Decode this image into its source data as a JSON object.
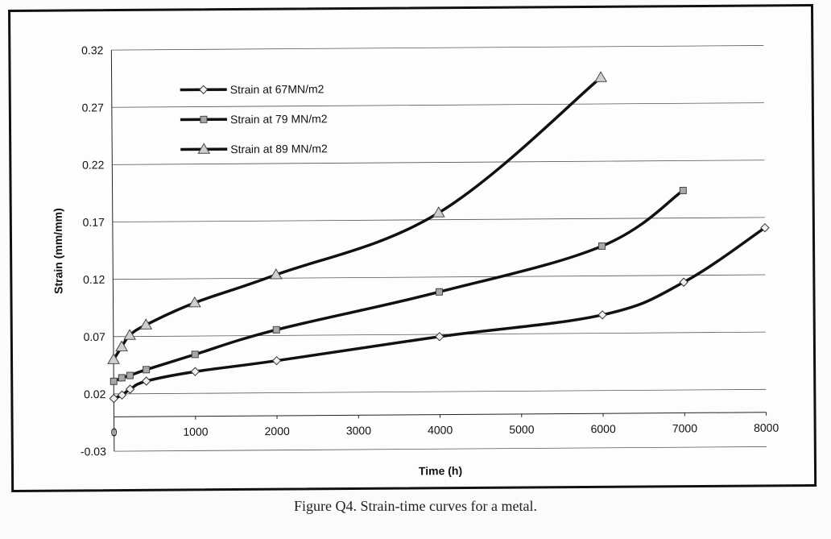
{
  "chart_data": {
    "type": "line",
    "title": "",
    "xlabel": "Time (h)",
    "ylabel": "Strain (mm/mm)",
    "xlim": [
      0,
      8000
    ],
    "ylim": [
      -0.03,
      0.32
    ],
    "x_ticks": [
      "0",
      "1000",
      "2000",
      "3000",
      "4000",
      "5000",
      "6000",
      "7000",
      "8000"
    ],
    "y_ticks": [
      "-0.03",
      "0.02",
      "0.07",
      "0.12",
      "0.17",
      "0.22",
      "0.27",
      "0.32"
    ],
    "grid": true,
    "legend_position": "top-left",
    "series": [
      {
        "name": "Strain at 67MN/m2",
        "marker": "diamond",
        "color": "#111111",
        "x": [
          0,
          100,
          200,
          400,
          1000,
          2000,
          4000,
          6000,
          7000,
          8000
        ],
        "y": [
          0.016,
          0.019,
          0.024,
          0.031,
          0.039,
          0.048,
          0.068,
          0.086,
          0.114,
          0.161
        ]
      },
      {
        "name": "Strain at 79 MN/m2",
        "marker": "square",
        "color": "#111111",
        "x": [
          0,
          100,
          200,
          400,
          1000,
          2000,
          4000,
          6000,
          7000
        ],
        "y": [
          0.031,
          0.034,
          0.036,
          0.041,
          0.054,
          0.075,
          0.107,
          0.146,
          0.194
        ]
      },
      {
        "name": "Strain at 89 MN/m2",
        "marker": "triangle",
        "color": "#111111",
        "x": [
          0,
          100,
          200,
          400,
          1000,
          2000,
          4000,
          6000
        ],
        "y": [
          0.05,
          0.061,
          0.071,
          0.08,
          0.099,
          0.123,
          0.176,
          0.293
        ]
      }
    ]
  },
  "caption": "Figure Q4. Strain-time curves for a metal."
}
